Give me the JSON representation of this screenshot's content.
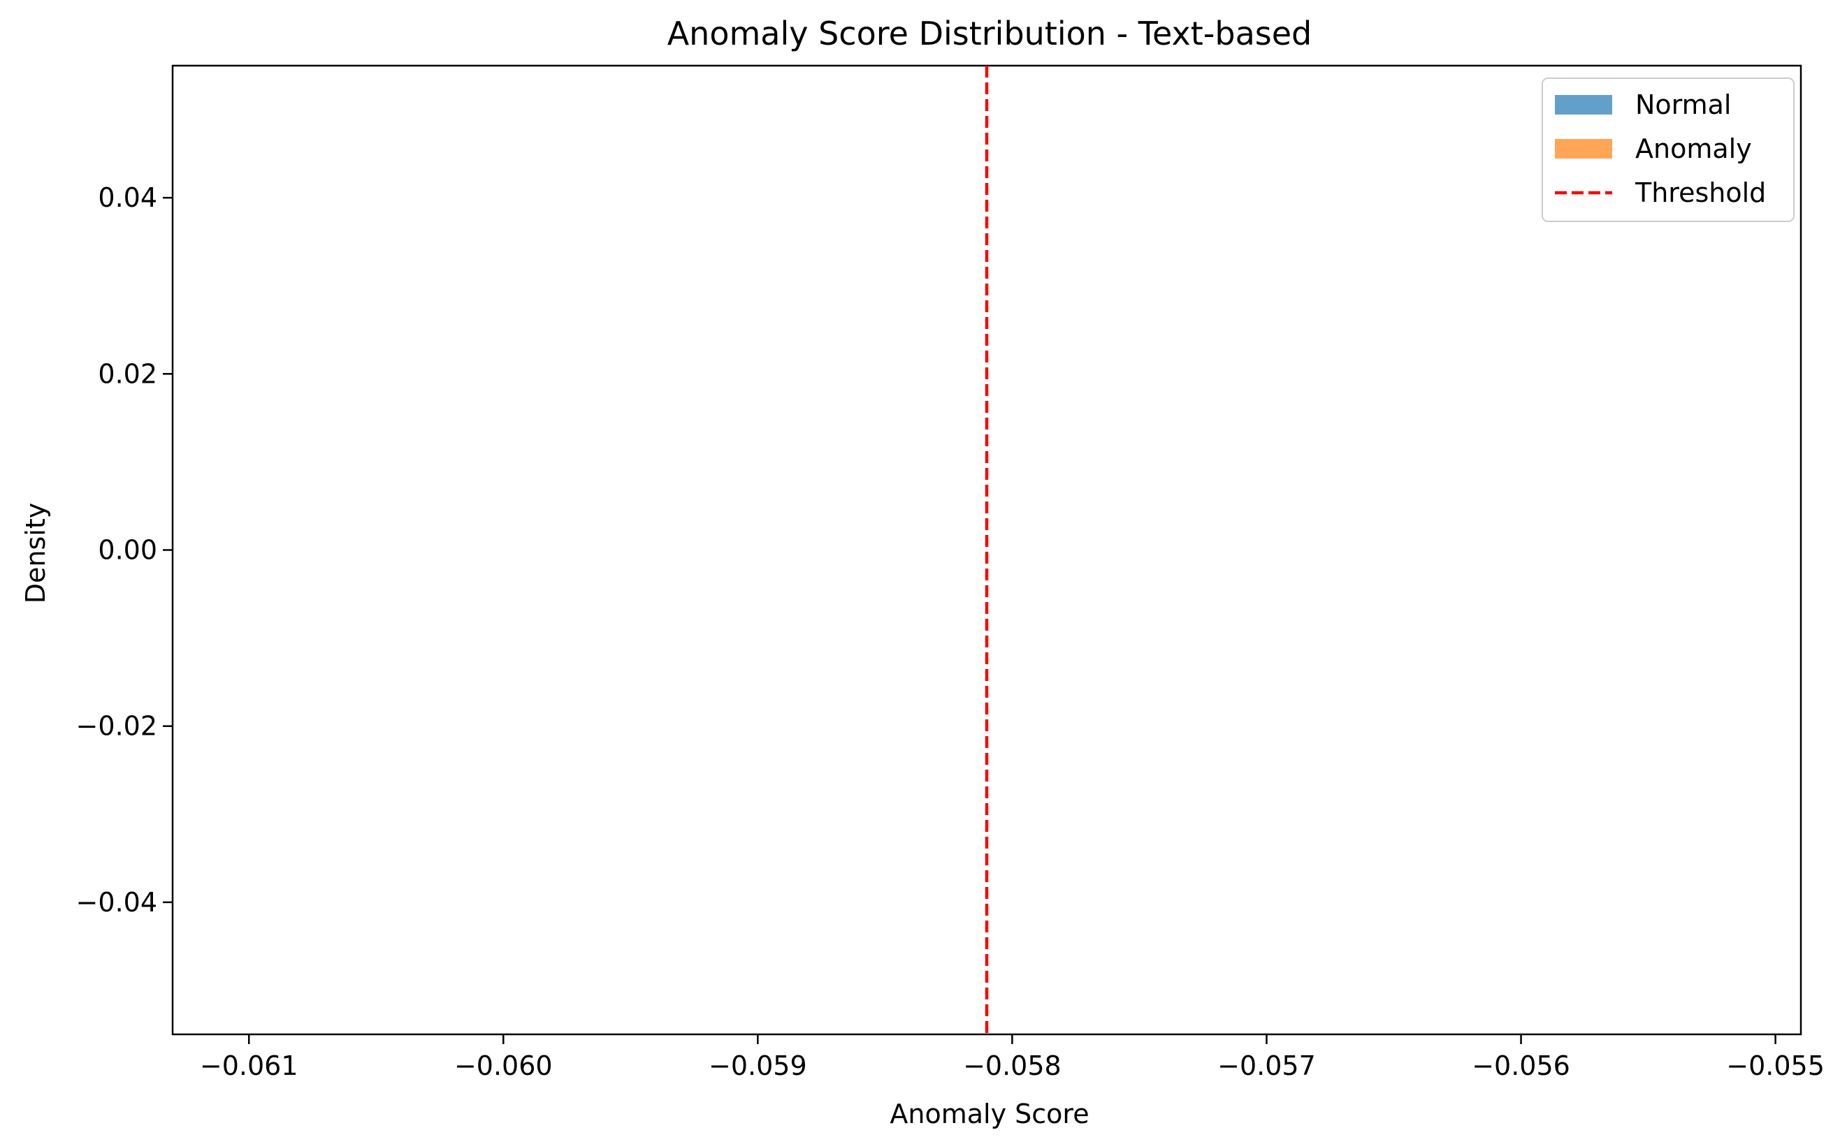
{
  "chart_data": {
    "type": "histogram",
    "title": "Anomaly Score Distribution - Text-based",
    "xlabel": "Anomaly Score",
    "ylabel": "Density",
    "xlim": [
      -0.0613,
      -0.0549
    ],
    "ylim": [
      -0.055,
      0.055
    ],
    "x_ticks": [
      {
        "value": -0.061,
        "label": "−0.061"
      },
      {
        "value": -0.06,
        "label": "−0.060"
      },
      {
        "value": -0.059,
        "label": "−0.059"
      },
      {
        "value": -0.058,
        "label": "−0.058"
      },
      {
        "value": -0.057,
        "label": "−0.057"
      },
      {
        "value": -0.056,
        "label": "−0.056"
      },
      {
        "value": -0.055,
        "label": "−0.055"
      }
    ],
    "y_ticks": [
      {
        "value": 0.04,
        "label": "0.04"
      },
      {
        "value": 0.02,
        "label": "0.02"
      },
      {
        "value": 0.0,
        "label": "0.00"
      },
      {
        "value": -0.02,
        "label": "−0.02"
      },
      {
        "value": -0.04,
        "label": "−0.04"
      }
    ],
    "series": [
      {
        "name": "Normal",
        "kind": "bar",
        "color": "#1f77b4",
        "alpha": 0.7,
        "values": []
      },
      {
        "name": "Anomaly",
        "kind": "bar",
        "color": "#ff7f0e",
        "alpha": 0.7,
        "values": []
      }
    ],
    "threshold": {
      "name": "Threshold",
      "value": -0.0581,
      "color": "#ff0000",
      "style": "dashed"
    },
    "legend_position": "top-right",
    "grid": false
  }
}
